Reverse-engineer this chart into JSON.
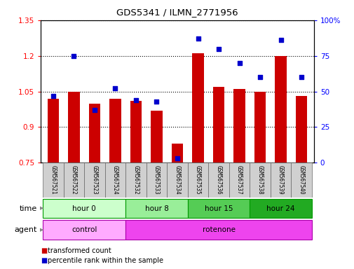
{
  "title": "GDS5341 / ILMN_2771956",
  "samples": [
    "GSM567521",
    "GSM567522",
    "GSM567523",
    "GSM567524",
    "GSM567532",
    "GSM567533",
    "GSM567534",
    "GSM567535",
    "GSM567536",
    "GSM567537",
    "GSM567538",
    "GSM567539",
    "GSM567540"
  ],
  "bar_values": [
    1.02,
    1.05,
    1.0,
    1.02,
    1.01,
    0.97,
    0.83,
    1.21,
    1.07,
    1.06,
    1.05,
    1.2,
    1.03
  ],
  "dot_values_pct": [
    47,
    75,
    37,
    52,
    44,
    43,
    3,
    87,
    80,
    70,
    60,
    86,
    60
  ],
  "ylim_left": [
    0.75,
    1.35
  ],
  "ylim_right": [
    0,
    100
  ],
  "yticks_left": [
    0.75,
    0.9,
    1.05,
    1.2,
    1.35
  ],
  "yticks_right": [
    0,
    25,
    50,
    75,
    100
  ],
  "ytick_labels_left": [
    "0.75",
    "0.9",
    "1.05",
    "1.2",
    "1.35"
  ],
  "ytick_labels_right": [
    "0",
    "25",
    "50",
    "75",
    "100%"
  ],
  "bar_color": "#cc0000",
  "dot_color": "#0000cc",
  "bar_base": 0.75,
  "groups": [
    {
      "label": "hour 0",
      "start": 0,
      "end": 3,
      "color": "#ccffcc"
    },
    {
      "label": "hour 8",
      "start": 4,
      "end": 6,
      "color": "#99ee99"
    },
    {
      "label": "hour 15",
      "start": 7,
      "end": 9,
      "color": "#55cc55"
    },
    {
      "label": "hour 24",
      "start": 10,
      "end": 12,
      "color": "#22aa22"
    }
  ],
  "agents": [
    {
      "label": "control",
      "start": 0,
      "end": 3,
      "color": "#ffaaff"
    },
    {
      "label": "rotenone",
      "start": 4,
      "end": 12,
      "color": "#ee44ee"
    }
  ],
  "time_label": "time",
  "agent_label": "agent",
  "legend_bar": "transformed count",
  "legend_dot": "percentile rank within the sample",
  "group_border": "#009900",
  "agent_border": "#aa00aa"
}
